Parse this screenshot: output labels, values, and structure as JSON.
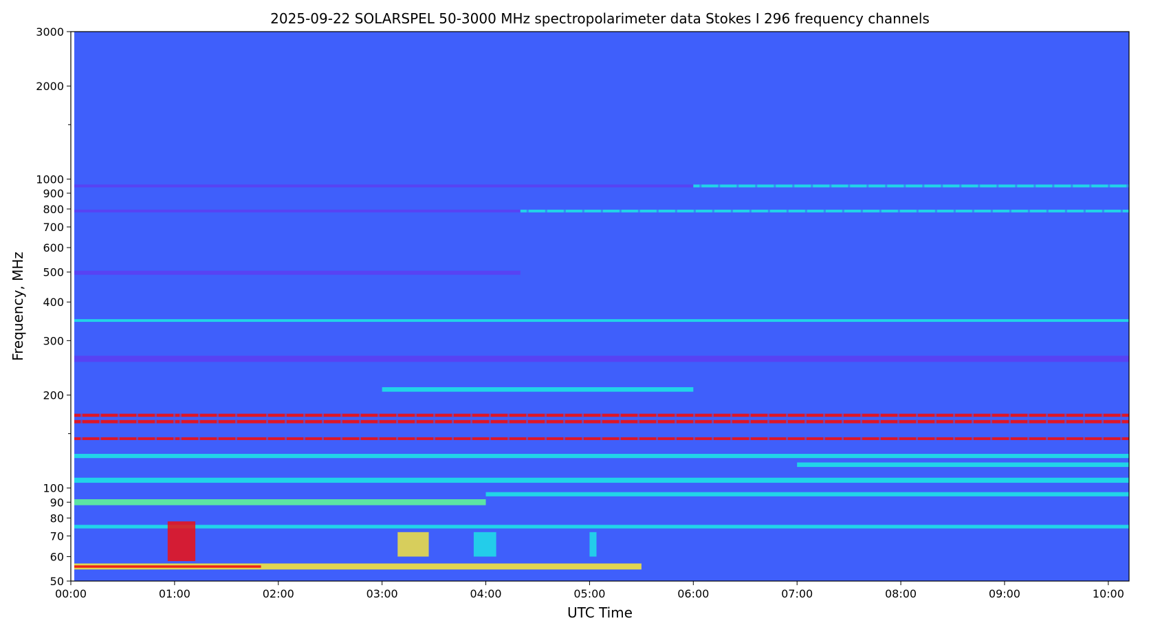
{
  "chart_data": {
    "type": "heatmap",
    "title": "2025-09-22      SOLARSPEL   50-3000 MHz spectropolarimeter data      Stokes I   296 frequency channels",
    "xlabel": "UTC Time",
    "ylabel": "Frequency, MHz",
    "y_scale": "log",
    "ylim": [
      50,
      3000
    ],
    "xlim": [
      "00:00",
      "10:12"
    ],
    "data_start": "00:02",
    "x_ticks": [
      "00:00",
      "01:00",
      "02:00",
      "03:00",
      "04:00",
      "05:00",
      "06:00",
      "07:00",
      "08:00",
      "09:00",
      "10:00"
    ],
    "y_ticks_labeled": [
      50,
      60,
      70,
      80,
      90,
      100,
      200,
      300,
      400,
      500,
      600,
      700,
      800,
      900,
      1000,
      2000,
      3000
    ],
    "y_ticks_minor_unlabeled": [
      150,
      1500
    ],
    "background_color": "#3f5ffb",
    "colors": {
      "blue": "#3f5ffb",
      "violet": "#5b3ff2",
      "cyan": "#1ee1e6",
      "green": "#5ff29a",
      "yellow": "#f2e23f",
      "red": "#ee1010"
    },
    "bands": [
      {
        "freq_lo": 940,
        "freq_hi": 960,
        "color": "violet",
        "t0": "00:02",
        "t1": "06:00"
      },
      {
        "freq_lo": 940,
        "freq_hi": 960,
        "color": "cyan",
        "t0": "06:00",
        "t1": "10:12",
        "dashed": true
      },
      {
        "freq_lo": 780,
        "freq_hi": 796,
        "color": "violet",
        "t0": "00:02",
        "t1": "04:20"
      },
      {
        "freq_lo": 780,
        "freq_hi": 796,
        "color": "cyan",
        "t0": "04:20",
        "t1": "10:12",
        "dashed": true
      },
      {
        "freq_lo": 490,
        "freq_hi": 505,
        "color": "violet",
        "t0": "00:02",
        "t1": "04:20"
      },
      {
        "freq_lo": 345,
        "freq_hi": 352,
        "color": "cyan",
        "t0": "00:02",
        "t1": "10:12"
      },
      {
        "freq_lo": 256,
        "freq_hi": 268,
        "color": "violet",
        "t0": "00:02",
        "t1": "10:12"
      },
      {
        "freq_lo": 205,
        "freq_hi": 212,
        "color": "cyan",
        "t0": "03:00",
        "t1": "06:00"
      },
      {
        "freq_lo": 170,
        "freq_hi": 174,
        "color": "red",
        "t0": "00:02",
        "t1": "10:12",
        "dashed": true
      },
      {
        "freq_lo": 162,
        "freq_hi": 166,
        "color": "red",
        "t0": "00:02",
        "t1": "10:12",
        "dashed": true
      },
      {
        "freq_lo": 143,
        "freq_hi": 146,
        "color": "red",
        "t0": "00:02",
        "t1": "10:12",
        "dashed": true
      },
      {
        "freq_lo": 125,
        "freq_hi": 129,
        "color": "cyan",
        "t0": "00:02",
        "t1": "10:12"
      },
      {
        "freq_lo": 117,
        "freq_hi": 121,
        "color": "cyan",
        "t0": "07:00",
        "t1": "10:12"
      },
      {
        "freq_lo": 104,
        "freq_hi": 108,
        "color": "cyan",
        "t0": "00:02",
        "t1": "10:12"
      },
      {
        "freq_lo": 94,
        "freq_hi": 97,
        "color": "cyan",
        "t0": "04:00",
        "t1": "10:12"
      },
      {
        "freq_lo": 88,
        "freq_hi": 92,
        "color": "green",
        "t0": "00:02",
        "t1": "04:00"
      },
      {
        "freq_lo": 74,
        "freq_hi": 76,
        "color": "cyan",
        "t0": "00:02",
        "t1": "10:12"
      },
      {
        "freq_lo": 54.5,
        "freq_hi": 57,
        "color": "yellow",
        "t0": "00:02",
        "t1": "05:30"
      },
      {
        "freq_lo": 55.2,
        "freq_hi": 56.2,
        "color": "red",
        "t0": "00:02",
        "t1": "01:50"
      }
    ],
    "bursts": [
      {
        "t0": "00:56",
        "t1": "01:12",
        "freq_lo": 58,
        "freq_hi": 78,
        "color": "red"
      },
      {
        "t0": "03:09",
        "t1": "03:27",
        "freq_lo": 60,
        "freq_hi": 72,
        "color": "yellow"
      },
      {
        "t0": "03:53",
        "t1": "04:06",
        "freq_lo": 60,
        "freq_hi": 72,
        "color": "cyan"
      },
      {
        "t0": "05:00",
        "t1": "05:04",
        "freq_lo": 60,
        "freq_hi": 72,
        "color": "cyan"
      }
    ]
  }
}
